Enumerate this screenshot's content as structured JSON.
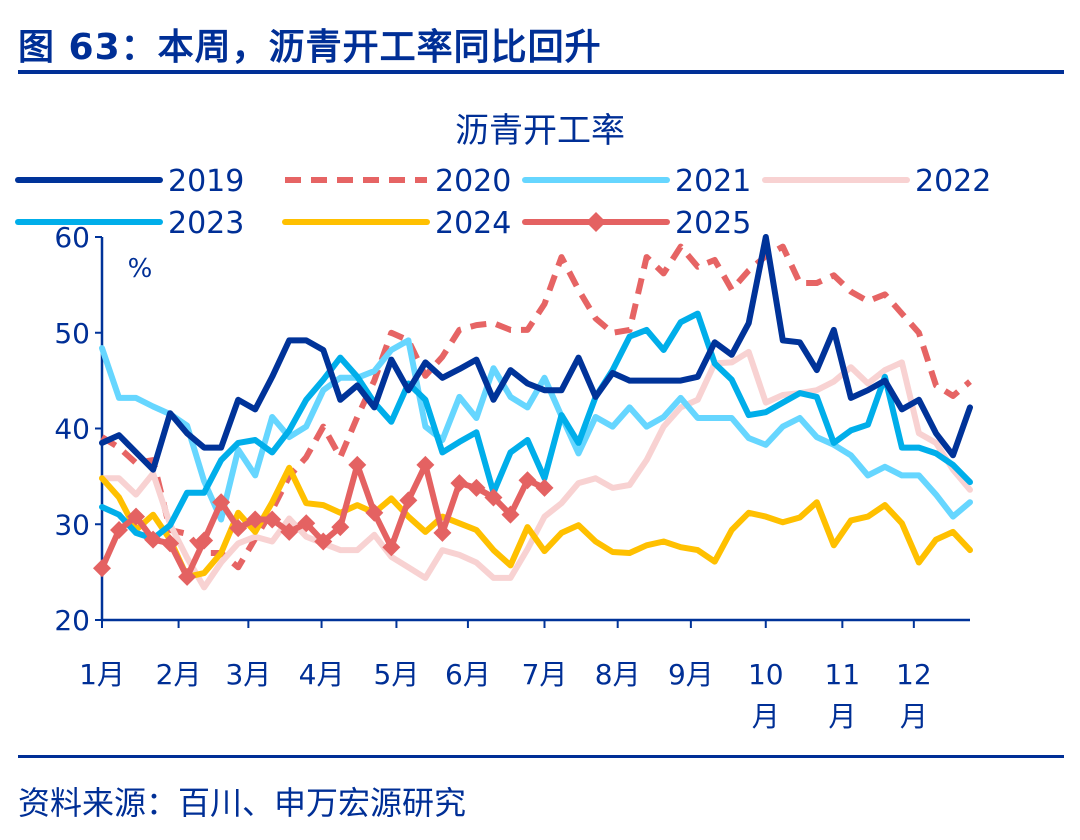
{
  "header": {
    "title": "图 63：本周，沥青开工率同比回升"
  },
  "footer": {
    "source": "资料来源：百川、申万宏源研究"
  },
  "chart_data": {
    "type": "line",
    "title": "沥青开工率",
    "ylabel": "%",
    "ylim": [
      20,
      60
    ],
    "yticks": [
      20,
      30,
      40,
      50,
      60
    ],
    "x_unit": "week of year (1-52)",
    "xtick_labels": [
      [
        "1月"
      ],
      [
        "2月"
      ],
      [
        "3月"
      ],
      [
        "4月"
      ],
      [
        "5月"
      ],
      [
        "6月"
      ],
      [
        "7月"
      ],
      [
        "8月"
      ],
      [
        "9月"
      ],
      [
        "10",
        "月"
      ],
      [
        "11",
        "月"
      ],
      [
        "12",
        "月"
      ]
    ],
    "xtick_weeks": [
      1,
      5.5,
      9.6,
      13.9,
      18.3,
      22.5,
      27,
      31.3,
      35.6,
      40,
      44.5,
      48.7
    ],
    "grid": false,
    "legend_placement": "top",
    "series": [
      {
        "name": "2019",
        "color": "#003399",
        "dash": false,
        "marker": "none",
        "values": [
          38.5,
          39.3,
          37.5,
          35.7,
          41.6,
          39.5,
          38,
          38,
          43,
          42,
          45.4,
          49.2,
          49.2,
          48.2,
          43,
          44.5,
          42.2,
          47.2,
          44,
          46.9,
          45.3,
          46.2,
          47.2,
          43,
          46.1,
          44.7,
          44,
          44,
          47.4,
          43.3,
          45.8,
          45,
          45,
          45,
          45,
          45.4,
          49,
          47.7,
          51,
          60,
          49.2,
          49,
          46.1,
          50.3,
          43.2,
          44,
          45,
          42,
          43,
          39.5,
          37.2,
          42.2
        ]
      },
      {
        "name": "2020",
        "color": "#e66464",
        "dash": true,
        "marker": "none",
        "values": [
          39.1,
          38,
          36.4,
          36.7,
          29.4,
          29,
          27,
          27,
          25.5,
          28.5,
          31.5,
          35,
          37,
          40.2,
          37,
          41.2,
          45,
          50,
          49.2,
          45.5,
          47.5,
          50.3,
          50.8,
          51,
          50.3,
          50.3,
          53,
          57.9,
          54.5,
          51.5,
          50,
          50.3,
          57.9,
          56.2,
          59,
          56.9,
          57.6,
          54.5,
          56.5,
          58,
          59,
          55.2,
          55.2,
          56,
          54.3,
          53.3,
          54,
          52,
          50,
          44.5,
          43.4,
          44.9
        ]
      },
      {
        "name": "2021",
        "color": "#66d6ff",
        "dash": false,
        "marker": "none",
        "values": [
          48.4,
          43.2,
          43.2,
          42.3,
          41.5,
          40.3,
          34.5,
          30.5,
          37.8,
          35.1,
          41.2,
          39.1,
          40.2,
          44,
          45.3,
          45.3,
          46,
          48.2,
          49.2,
          40.2,
          38.8,
          43.3,
          41.1,
          46.3,
          43.3,
          42.2,
          45.3,
          41.3,
          37.4,
          41.2,
          40.2,
          42.2,
          40.2,
          41.2,
          43.2,
          41.1,
          41.1,
          41.1,
          39,
          38.3,
          40.2,
          41.1,
          39.1,
          38.3,
          37.2,
          35.1,
          36,
          35.1,
          35.1,
          33.1,
          30.8,
          32.3
        ]
      },
      {
        "name": "2022",
        "color": "#f8d2d2",
        "dash": false,
        "marker": "none",
        "values": [
          34.8,
          34.8,
          33.1,
          35.3,
          30,
          26.5,
          23.4,
          26,
          28,
          28.7,
          28.2,
          30.6,
          28.7,
          28,
          27.3,
          27.3,
          28.9,
          26.6,
          25.5,
          24.4,
          27.3,
          26.8,
          26,
          24.4,
          24.4,
          27.4,
          30.8,
          32.2,
          34.3,
          34.8,
          33.8,
          34.1,
          36.7,
          40.2,
          42.2,
          43,
          46.8,
          46.9,
          48,
          42.7,
          43.5,
          43.7,
          44,
          44.9,
          46.4,
          44.7,
          46.1,
          46.9,
          39.5,
          38.5,
          35.7,
          33.6
        ]
      },
      {
        "name": "2023",
        "color": "#00aeea",
        "dash": false,
        "marker": "none",
        "values": [
          31.8,
          31,
          29.1,
          28.5,
          29.9,
          33.3,
          33.3,
          36.7,
          38.5,
          38.8,
          37.5,
          39.8,
          43,
          45.1,
          47.4,
          45.4,
          42.7,
          40.7,
          44.7,
          43,
          37.5,
          38.6,
          39.6,
          33.3,
          37.5,
          38.8,
          34.8,
          41.4,
          38.5,
          43.3,
          46.1,
          49.6,
          50.3,
          48.2,
          51.1,
          52,
          46.8,
          45.1,
          41.4,
          41.7,
          42.7,
          43.7,
          43.3,
          38.5,
          39.8,
          40.4,
          45.4,
          38,
          38,
          37.4,
          36.2,
          34.4
        ]
      },
      {
        "name": "2024",
        "color": "#ffc000",
        "dash": false,
        "marker": "none",
        "values": [
          34.8,
          32.8,
          29.4,
          31,
          28.4,
          24.5,
          24.9,
          27,
          31.2,
          29.2,
          32.3,
          35.9,
          32.2,
          32,
          31.2,
          32,
          31.2,
          32.7,
          30.8,
          29.2,
          30.8,
          30.1,
          29.4,
          27.3,
          25.7,
          29.7,
          27.2,
          29.1,
          29.9,
          28.2,
          27.1,
          27,
          27.8,
          28.2,
          27.6,
          27.3,
          26.1,
          29.4,
          31.2,
          30.8,
          30.2,
          30.7,
          32.3,
          27.8,
          30.4,
          30.8,
          32,
          30.1,
          26,
          28.4,
          29.2,
          27.3
        ]
      },
      {
        "name": "2025",
        "color": "#e46262",
        "dash": false,
        "marker": "diamond",
        "values": [
          25.4,
          29.4,
          30.8,
          28.4,
          28,
          24.5,
          28.3,
          32.3,
          29.6,
          30.5,
          30.5,
          29.2,
          30.1,
          28.2,
          29.7,
          36.2,
          31.2,
          27.6,
          32.5,
          36.2,
          29.1,
          34.3,
          33.8,
          32.8,
          31,
          34.6,
          33.8
        ]
      }
    ]
  }
}
